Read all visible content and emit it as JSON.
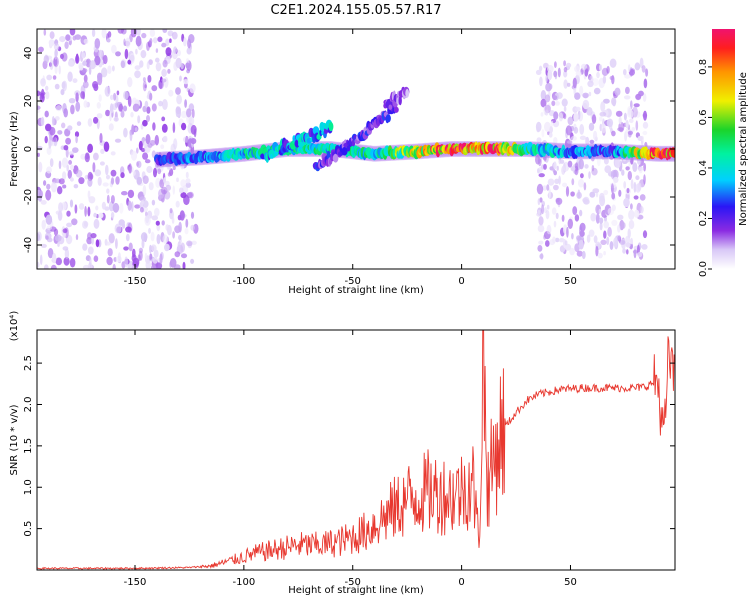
{
  "title": "C2E1.2024.155.05.57.R17",
  "chart_data": [
    {
      "type": "heatmap",
      "xlabel": "Height of straight line (km)",
      "ylabel": "Frequency (Hz)",
      "xlim": [
        -195,
        98
      ],
      "ylim": [
        -50,
        50
      ],
      "xticks": [
        -150,
        -100,
        -50,
        0,
        50
      ],
      "yticks": [
        -40,
        -20,
        0,
        20,
        40
      ],
      "colorbar": {
        "label": "Normalized spectral amplitude",
        "range": [
          0,
          0.95
        ],
        "ticks": [
          "0.0",
          "0.2",
          "0.4",
          "0.6",
          "0.8"
        ],
        "colormap": "rainbow-white-purple-to-red"
      },
      "noise_regions": [
        {
          "x_range": [
            -195,
            -122
          ],
          "freq_range": [
            -50,
            50
          ],
          "amplitude": 0.08
        },
        {
          "x_range": [
            35,
            85
          ],
          "freq_range": [
            -45,
            37
          ],
          "amplitude": 0.07
        }
      ],
      "main_band": [
        {
          "x": -140,
          "freq": -4.5,
          "amplitude": 0.22
        },
        {
          "x": -120,
          "freq": -3.5,
          "amplitude": 0.3
        },
        {
          "x": -100,
          "freq": -2,
          "amplitude": 0.4
        },
        {
          "x": -80,
          "freq": 0,
          "amplitude": 0.45
        },
        {
          "x": -60,
          "freq": 0,
          "amplitude": 0.4
        },
        {
          "x": -40,
          "freq": -2,
          "amplitude": 0.42
        },
        {
          "x": -20,
          "freq": -1,
          "amplitude": 0.6
        },
        {
          "x": -5,
          "freq": 0,
          "amplitude": 0.85
        },
        {
          "x": 15,
          "freq": 0,
          "amplitude": 0.8
        },
        {
          "x": 30,
          "freq": 0,
          "amplitude": 0.45
        },
        {
          "x": 50,
          "freq": -1,
          "amplitude": 0.3
        },
        {
          "x": 70,
          "freq": -1,
          "amplitude": 0.28
        },
        {
          "x": 90,
          "freq": -2,
          "amplitude": 0.85
        }
      ],
      "secondary_branches": [
        {
          "x": [
            -92,
            -60
          ],
          "freq": [
            -3,
            9
          ],
          "amplitude": 0.35
        },
        {
          "x": [
            -67,
            -30
          ],
          "freq": [
            -8,
            17
          ],
          "amplitude": 0.2
        },
        {
          "x": [
            -35,
            -25
          ],
          "freq": [
            18,
            24
          ],
          "amplitude": 0.15
        }
      ]
    },
    {
      "type": "line",
      "xlabel": "Height of straight line (km)",
      "ylabel": "SNR (10 * v/v)",
      "multiplier": "(x10⁴)",
      "xlim": [
        -195,
        98
      ],
      "ylim": [
        0,
        2.9
      ],
      "xticks": [
        -150,
        -100,
        -50,
        0,
        50
      ],
      "yticks": [
        "0.5",
        "1.0",
        "1.5",
        "2.0",
        "2.5"
      ],
      "color": "#e8382f",
      "series": [
        {
          "x": [
            -195,
            -150,
            -125,
            -115,
            -105,
            -95,
            -85,
            -75,
            -65,
            -55,
            -45,
            -35,
            -25,
            -15,
            -5,
            0,
            5,
            8,
            10,
            12,
            15,
            18,
            22,
            25,
            30,
            35,
            45,
            55,
            65,
            75,
            80,
            85,
            90,
            93,
            95,
            97,
            98
          ],
          "y": [
            0.02,
            0.02,
            0.03,
            0.05,
            0.12,
            0.2,
            0.25,
            0.3,
            0.3,
            0.35,
            0.45,
            0.65,
            0.85,
            0.95,
            0.9,
            0.95,
            1.1,
            0.35,
            2.6,
            1.0,
            1.35,
            1.65,
            1.8,
            1.9,
            2.05,
            2.12,
            2.18,
            2.2,
            2.2,
            2.2,
            2.2,
            2.22,
            2.3,
            1.55,
            2.6,
            2.4,
            2.2
          ]
        }
      ]
    }
  ]
}
